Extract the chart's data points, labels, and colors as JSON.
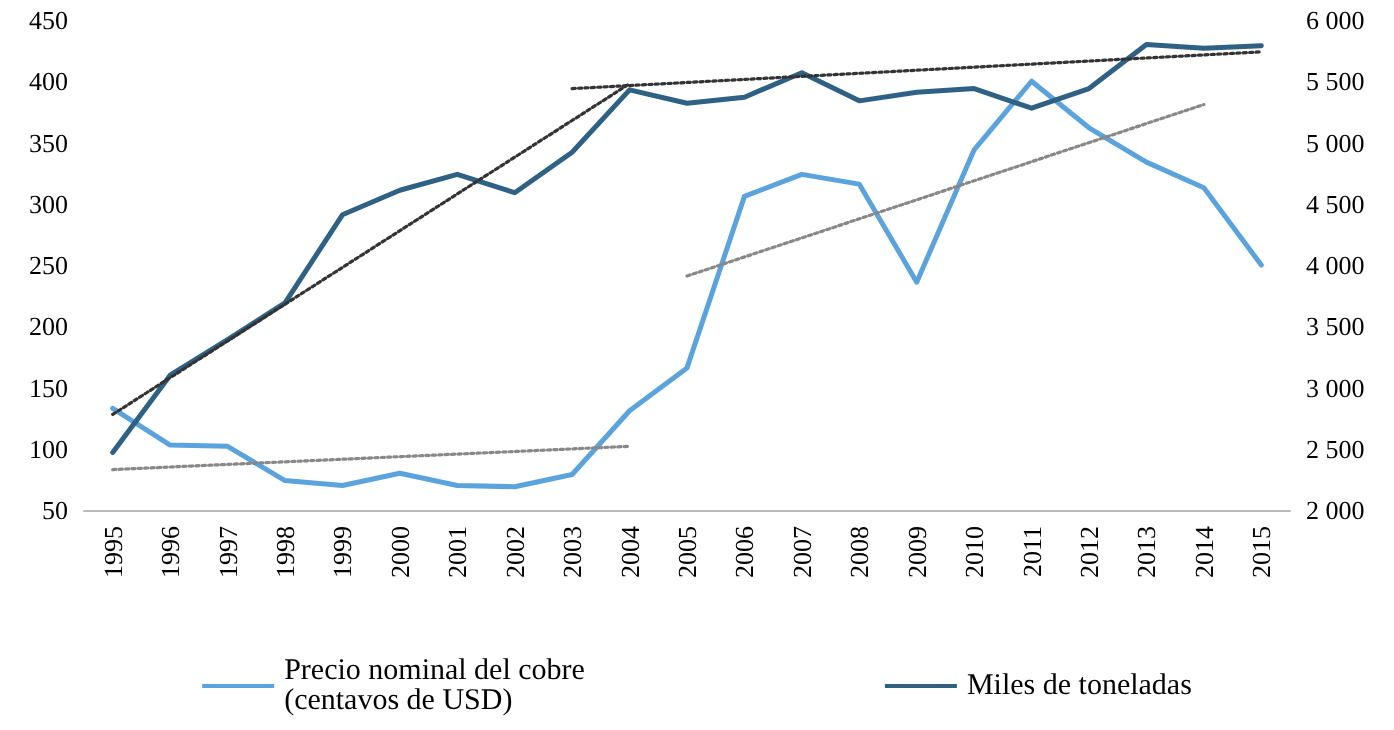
{
  "chart_data": {
    "type": "line",
    "categories": [
      "1995",
      "1996",
      "1997",
      "1998",
      "1999",
      "2000",
      "2001",
      "2002",
      "2003",
      "2004",
      "2005",
      "2006",
      "2007",
      "2008",
      "2009",
      "2010",
      "2011",
      "2012",
      "2013",
      "2014",
      "2015"
    ],
    "series": [
      {
        "name": "Precio nominal del cobre\n(centavos de USD)",
        "color": "#5ba3dc",
        "values": [
          133,
          103,
          102,
          74,
          70,
          80,
          70,
          69,
          79,
          131,
          166,
          306,
          324,
          316,
          236,
          344,
          400,
          362,
          334,
          313,
          250
        ]
      },
      {
        "name": "Miles de toneladas",
        "color": "#2e6184",
        "axis": "y2",
        "values": [
          2470,
          3100,
          3390,
          3690,
          4410,
          4610,
          4740,
          4590,
          4920,
          5430,
          5320,
          5370,
          5570,
          5340,
          5410,
          5440,
          5280,
          5440,
          5800,
          5770,
          5790
        ]
      },
      {
        "type": "line",
        "color": "#333333",
        "axis": "y2",
        "line_style": "dotted",
        "values": [
          2780,
          null,
          null,
          null,
          null,
          null,
          null,
          null,
          null,
          5480,
          null,
          null,
          null,
          null,
          null,
          null,
          null,
          null,
          null,
          null,
          null
        ]
      },
      {
        "type": "line",
        "color": "#333333",
        "axis": "y2",
        "line_style": "dotted",
        "values": [
          null,
          null,
          null,
          null,
          null,
          null,
          null,
          null,
          5440,
          null,
          null,
          null,
          null,
          null,
          null,
          null,
          null,
          null,
          null,
          null,
          5740
        ]
      },
      {
        "type": "line",
        "color": "#888888",
        "line_style": "dotted",
        "values": [
          83,
          null,
          null,
          null,
          null,
          null,
          null,
          null,
          null,
          102,
          null,
          null,
          null,
          null,
          null,
          null,
          null,
          null,
          null,
          null,
          null
        ]
      },
      {
        "type": "line",
        "color": "#888888",
        "line_style": "dotted",
        "values": [
          null,
          null,
          null,
          null,
          null,
          null,
          null,
          null,
          null,
          null,
          241,
          null,
          null,
          null,
          null,
          null,
          null,
          null,
          null,
          381,
          null
        ]
      }
    ],
    "ylim": [
      50,
      450
    ],
    "yticks": [
      50,
      100,
      150,
      200,
      250,
      300,
      350,
      400,
      450
    ],
    "y2lim": [
      2000,
      6000
    ],
    "y2ticks": [
      {
        "value": 2000,
        "label": "2 000"
      },
      {
        "value": 2500,
        "label": "2 500"
      },
      {
        "value": 3000,
        "label": "3 000"
      },
      {
        "value": 3500,
        "label": "3 500"
      },
      {
        "value": 4000,
        "label": "4 000"
      },
      {
        "value": 4500,
        "label": "4 500"
      },
      {
        "value": 5000,
        "label": "5 000"
      },
      {
        "value": 5500,
        "label": "5 500"
      },
      {
        "value": 6000,
        "label": "6 000"
      }
    ],
    "grid": false,
    "legend": "bottom",
    "marker": "none",
    "line_style": "solid"
  }
}
